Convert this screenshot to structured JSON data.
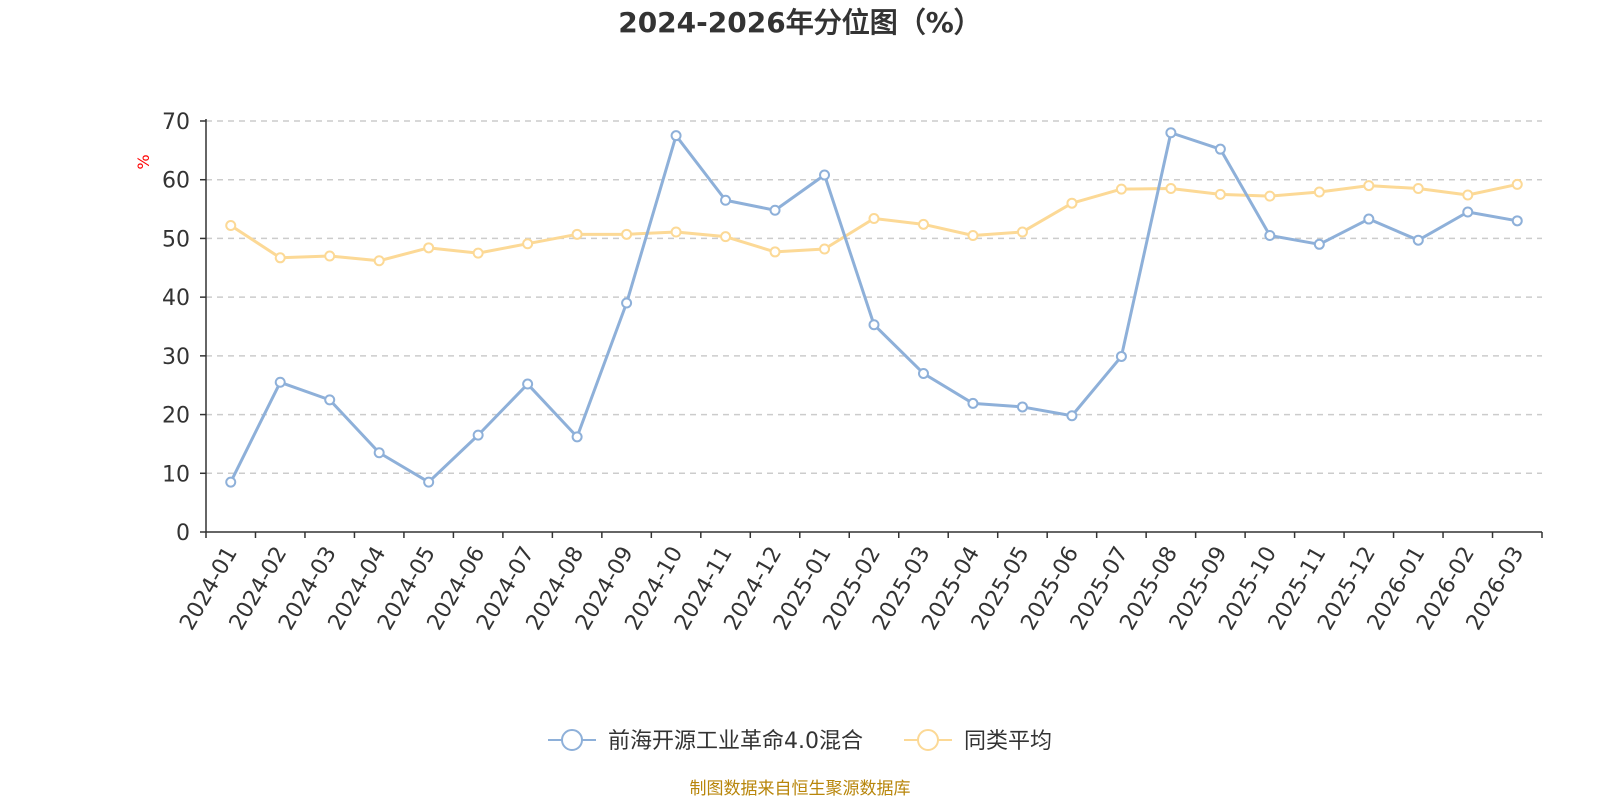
{
  "colors": {
    "series_1": "#8eb0d9",
    "series_2": "#fcd996",
    "source_text": "#b8860b",
    "unit_label": "#ff0000",
    "gridline": "#cccccc",
    "axis": "#333333"
  },
  "chart_data": {
    "type": "line",
    "title": "2024-2026年分位图（%）",
    "ylabel": "%",
    "xlabel": "",
    "ylim": [
      0,
      70
    ],
    "yticks": [
      0,
      10,
      20,
      30,
      40,
      50,
      60,
      70
    ],
    "grid": "horizontal dashed",
    "legend_position": "bottom-center",
    "categories": [
      "2024-01",
      "2024-02",
      "2024-03",
      "2024-04",
      "2024-05",
      "2024-06",
      "2024-07",
      "2024-08",
      "2024-09",
      "2024-10",
      "2024-11",
      "2024-12",
      "2025-01",
      "2025-02",
      "2025-03",
      "2025-04",
      "2025-05",
      "2025-06",
      "2025-07",
      "2025-08",
      "2025-09",
      "2025-10",
      "2025-11",
      "2025-12",
      "2026-01",
      "2026-02",
      "2026-03"
    ],
    "series": [
      {
        "name": "前海开源工业革命4.0混合",
        "color": "#8eb0d9",
        "values": [
          8.5,
          25.5,
          22.5,
          13.5,
          8.5,
          16.5,
          25.2,
          16.2,
          39.0,
          67.5,
          56.5,
          54.8,
          60.8,
          35.3,
          27.0,
          21.9,
          21.3,
          19.8,
          29.9,
          68.0,
          65.2,
          50.5,
          49.0,
          53.3,
          49.7,
          54.5,
          53.0
        ]
      },
      {
        "name": "同类平均",
        "color": "#fcd996",
        "values": [
          52.2,
          46.7,
          47.0,
          46.2,
          48.4,
          47.5,
          49.1,
          50.7,
          50.7,
          51.1,
          50.3,
          47.7,
          48.2,
          53.4,
          52.4,
          50.5,
          51.1,
          56.0,
          58.4,
          58.5,
          57.5,
          57.2,
          57.9,
          59.0,
          58.5,
          57.4,
          59.2
        ]
      }
    ]
  },
  "source_text": "制图数据来自恒生聚源数据库"
}
